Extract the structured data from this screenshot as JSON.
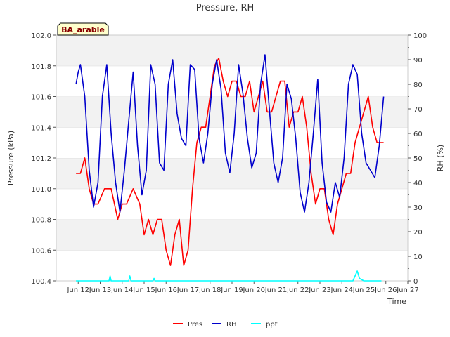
{
  "chart_data": {
    "type": "line",
    "title": "Pressure, RH",
    "xlabel": "Time",
    "ylabel_left": "Pressure (kPa)",
    "ylabel_right": "RH (%)",
    "site_label": "BA_arable",
    "ylim_left": [
      100.4,
      102.0
    ],
    "ylim_right": [
      0,
      100
    ],
    "xlim": [
      11,
      27
    ],
    "yticks_left": [
      "100.4",
      "100.6",
      "100.8",
      "101.0",
      "101.2",
      "101.4",
      "101.6",
      "101.8",
      "102.0"
    ],
    "yticks_right": [
      "0",
      "10",
      "20",
      "30",
      "40",
      "50",
      "60",
      "70",
      "80",
      "90",
      "100"
    ],
    "xticks": [
      "Jun 12",
      "Jun 13",
      "Jun 14",
      "Jun 15",
      "Jun 16",
      "Jun 17",
      "Jun 18",
      "Jun 19",
      "Jun 20",
      "Jun 21",
      "Jun 22",
      "Jun 23",
      "Jun 24",
      "Jun 25",
      "Jun 26",
      "Jun 27"
    ],
    "xtick_days": [
      12,
      13,
      14,
      15,
      16,
      17,
      18,
      19,
      20,
      21,
      22,
      23,
      24,
      25,
      26,
      27
    ],
    "grid": "horizontal bands",
    "legend": "bottom",
    "series": [
      {
        "name": "Pres",
        "axis": "left",
        "color": "#ff0000",
        "x": [
          11.9,
          12.1,
          12.3,
          12.5,
          12.7,
          12.9,
          13.2,
          13.5,
          13.8,
          14.0,
          14.2,
          14.5,
          14.8,
          15.0,
          15.2,
          15.4,
          15.6,
          15.8,
          16.0,
          16.2,
          16.4,
          16.6,
          16.8,
          17.0,
          17.2,
          17.4,
          17.6,
          17.8,
          18.0,
          18.2,
          18.4,
          18.6,
          18.8,
          19.0,
          19.2,
          19.4,
          19.6,
          19.8,
          20.0,
          20.2,
          20.4,
          20.6,
          20.8,
          21.0,
          21.2,
          21.4,
          21.6,
          21.8,
          22.0,
          22.2,
          22.4,
          22.6,
          22.8,
          23.0,
          23.2,
          23.4,
          23.6,
          23.8,
          24.0,
          24.2,
          24.4,
          24.6,
          24.8,
          25.0,
          25.2,
          25.4,
          25.6,
          25.8,
          25.9
        ],
        "values": [
          101.1,
          101.1,
          101.2,
          101.0,
          100.9,
          100.9,
          101.0,
          101.0,
          100.8,
          100.9,
          100.9,
          101.0,
          100.9,
          100.7,
          100.8,
          100.7,
          100.8,
          100.8,
          100.6,
          100.5,
          100.7,
          100.8,
          100.5,
          100.6,
          101.0,
          101.3,
          101.4,
          101.4,
          101.6,
          101.8,
          101.85,
          101.7,
          101.6,
          101.7,
          101.7,
          101.6,
          101.6,
          101.7,
          101.5,
          101.6,
          101.7,
          101.5,
          101.5,
          101.6,
          101.7,
          101.7,
          101.4,
          101.5,
          101.5,
          101.6,
          101.4,
          101.1,
          100.9,
          101.0,
          101.0,
          100.8,
          100.7,
          100.9,
          101.0,
          101.1,
          101.1,
          101.3,
          101.4,
          101.5,
          101.6,
          101.4,
          101.3,
          101.3,
          101.3
        ]
      },
      {
        "name": "RH",
        "axis": "right",
        "color": "#0000cc",
        "x": [
          11.9,
          12.0,
          12.1,
          12.3,
          12.5,
          12.7,
          12.9,
          13.1,
          13.3,
          13.5,
          13.7,
          13.9,
          14.1,
          14.3,
          14.5,
          14.7,
          14.9,
          15.1,
          15.3,
          15.5,
          15.7,
          15.9,
          16.1,
          16.3,
          16.5,
          16.7,
          16.9,
          17.1,
          17.3,
          17.5,
          17.7,
          17.9,
          18.1,
          18.3,
          18.5,
          18.7,
          18.9,
          19.1,
          19.3,
          19.5,
          19.7,
          19.9,
          20.1,
          20.3,
          20.5,
          20.7,
          20.9,
          21.1,
          21.3,
          21.5,
          21.7,
          21.9,
          22.1,
          22.3,
          22.5,
          22.7,
          22.9,
          23.1,
          23.3,
          23.5,
          23.7,
          23.9,
          24.1,
          24.3,
          24.5,
          24.7,
          24.9,
          25.1,
          25.3,
          25.5,
          25.7,
          25.9
        ],
        "values": [
          80,
          85,
          88,
          75,
          45,
          30,
          40,
          75,
          88,
          60,
          40,
          28,
          45,
          65,
          85,
          55,
          35,
          45,
          88,
          80,
          48,
          45,
          80,
          90,
          68,
          58,
          55,
          88,
          86,
          58,
          48,
          60,
          80,
          90,
          78,
          52,
          44,
          60,
          88,
          76,
          58,
          46,
          52,
          80,
          92,
          70,
          48,
          40,
          50,
          80,
          74,
          58,
          36,
          28,
          40,
          60,
          82,
          48,
          32,
          28,
          40,
          34,
          50,
          80,
          88,
          84,
          60,
          48,
          45,
          42,
          55,
          75
        ]
      },
      {
        "name": "ppt",
        "axis": "right",
        "color": "#00ffff",
        "x": [
          11.9,
          13.4,
          13.45,
          13.5,
          14.3,
          14.35,
          14.4,
          15.4,
          15.45,
          15.5,
          24.5,
          24.6,
          24.7,
          24.8,
          25.0,
          25.8
        ],
        "values": [
          0,
          0,
          2,
          0,
          0,
          2,
          0,
          0,
          1,
          0,
          0,
          2,
          4,
          1,
          0,
          0
        ]
      }
    ]
  }
}
